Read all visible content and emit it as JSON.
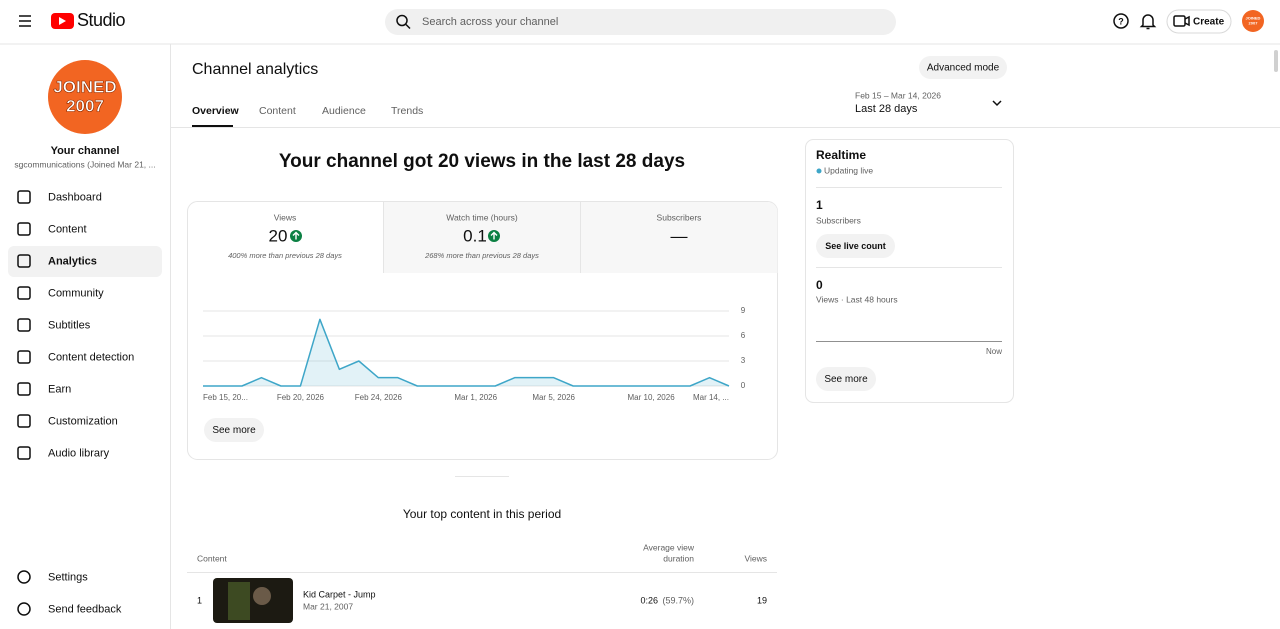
{
  "header": {
    "logo": "Studio",
    "search_placeholder": "Search across your channel",
    "create": "Create"
  },
  "sidebar": {
    "avatar_lines": [
      "JOINED",
      "2007"
    ],
    "channel_title": "Your channel",
    "channel_subtitle": "sgcommunications (Joined Mar 21, ...",
    "nav": [
      "Dashboard",
      "Content",
      "Analytics",
      "Community",
      "Subtitles",
      "Content detection",
      "Earn",
      "Customization",
      "Audio library"
    ],
    "footer": [
      "Settings",
      "Send feedback"
    ]
  },
  "page": {
    "title": "Channel analytics",
    "advanced_mode": "Advanced mode",
    "tabs": [
      "Overview",
      "Content",
      "Audience",
      "Trends"
    ],
    "date_range": "Feb 15 – Mar 14, 2026",
    "period": "Last 28 days"
  },
  "summary": {
    "headline": "Your channel got 20 views in the last 28 days",
    "cards": [
      {
        "label": "Views",
        "value": "20",
        "change": "400% more than previous 28 days"
      },
      {
        "label": "Watch time (hours)",
        "value": "0.1",
        "change": "268% more than previous 28 days"
      },
      {
        "label": "Subscribers",
        "value": "—"
      }
    ],
    "see_more": "See more"
  },
  "chart_data": {
    "type": "line",
    "categories": [
      "Feb 15, 20...",
      null,
      null,
      null,
      null,
      "Feb 20, 2026",
      null,
      null,
      null,
      "Feb 24, 2026",
      null,
      null,
      null,
      null,
      "Mar 1, 2026",
      null,
      null,
      null,
      "Mar 5, 2026",
      null,
      null,
      null,
      null,
      "Mar 10, 2026",
      null,
      null,
      null,
      "Mar 14, ..."
    ],
    "values": [
      0,
      0,
      0,
      1,
      0,
      0,
      8,
      2,
      3,
      1,
      1,
      0,
      0,
      0,
      0,
      0,
      1,
      1,
      1,
      0,
      0,
      0,
      0,
      0,
      0,
      0,
      1,
      0
    ],
    "color": "#3ea6c8",
    "ylim": [
      0,
      9
    ],
    "yticks": [
      0,
      3,
      6,
      9
    ],
    "grid": true
  },
  "realtime": {
    "title": "Realtime",
    "status": "Updating live",
    "subscribers_value": "1",
    "subscribers_label": "Subscribers",
    "live_count": "See live count",
    "views_value": "0",
    "views_label": "Views · Last 48 hours",
    "now": "Now",
    "see_more": "See more"
  },
  "top_content": {
    "title": "Your top content in this period",
    "headers": [
      "Content",
      "Average view",
      "duration",
      "Views"
    ],
    "rows": [
      {
        "rank": "1",
        "title": "Kid Carpet - Jump",
        "date": "Mar 21, 2007",
        "duration": "0:26",
        "percent": "(59.7%)",
        "views": "19"
      }
    ]
  }
}
